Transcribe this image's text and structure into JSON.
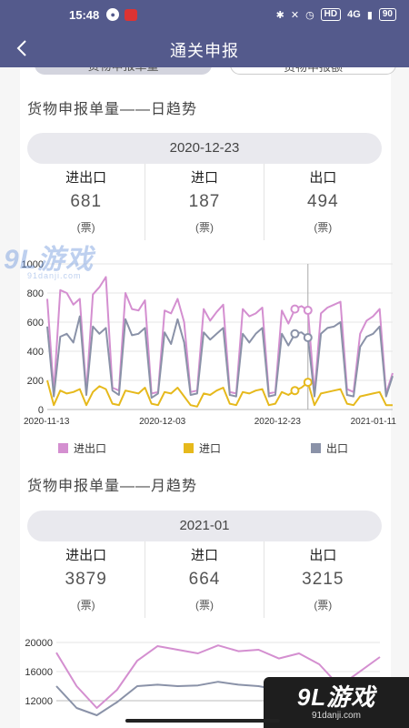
{
  "status_bar": {
    "time": "15:48",
    "battery": "90",
    "network": "4G"
  },
  "app_bar": {
    "title": "通关申报"
  },
  "tabs": [
    {
      "label": "货物申报单量",
      "active": true
    },
    {
      "label": "货物申报额",
      "active": false
    }
  ],
  "daily": {
    "section_title": "货物申报单量——日趋势",
    "date": "2020-12-23",
    "stats": [
      {
        "label": "进出口",
        "value": "681",
        "unit": "(票)"
      },
      {
        "label": "进口",
        "value": "187",
        "unit": "(票)"
      },
      {
        "label": "出口",
        "value": "494",
        "unit": "(票)"
      }
    ]
  },
  "monthly": {
    "section_title": "货物申报单量——月趋势",
    "date": "2021-01",
    "stats": [
      {
        "label": "进出口",
        "value": "3879",
        "unit": "(票)"
      },
      {
        "label": "进口",
        "value": "664",
        "unit": "(票)"
      },
      {
        "label": "出口",
        "value": "3215",
        "unit": "(票)"
      }
    ]
  },
  "legend": [
    {
      "label": "进出口",
      "color": "#d48fd0"
    },
    {
      "label": "进口",
      "color": "#e6b91c"
    },
    {
      "label": "出口",
      "color": "#8a92a8"
    }
  ],
  "watermark": {
    "logo": "9L游戏",
    "site": "91danji.com"
  },
  "chart_data": [
    {
      "type": "line",
      "ylim": [
        0,
        1000
      ],
      "yticks": [
        "0",
        "200",
        "400",
        "600",
        "800",
        "1000"
      ],
      "xticks": [
        "2020-11-13",
        "2020-12-03",
        "2020-12-23",
        "2021-01-11"
      ],
      "highlight_index": 40,
      "series": [
        {
          "name": "进出口",
          "color": "#d48fd0",
          "values": [
            760,
            120,
            820,
            800,
            720,
            760,
            120,
            790,
            840,
            910,
            150,
            130,
            800,
            690,
            680,
            750,
            110,
            120,
            680,
            660,
            760,
            600,
            120,
            130,
            690,
            610,
            670,
            720,
            120,
            110,
            690,
            640,
            660,
            700,
            110,
            120,
            680,
            590,
            690,
            710,
            681,
            110,
            660,
            700,
            720,
            740,
            140,
            120,
            520,
            610,
            640,
            690,
            110,
            250
          ]
        },
        {
          "name": "进口",
          "color": "#e6b91c",
          "values": [
            200,
            30,
            130,
            110,
            120,
            140,
            30,
            120,
            160,
            140,
            40,
            30,
            130,
            120,
            110,
            150,
            40,
            30,
            120,
            110,
            150,
            90,
            30,
            20,
            110,
            100,
            130,
            150,
            40,
            30,
            120,
            110,
            130,
            140,
            30,
            40,
            120,
            100,
            130,
            150,
            187,
            30,
            110,
            120,
            130,
            140,
            40,
            30,
            90,
            100,
            110,
            120,
            30,
            30
          ]
        },
        {
          "name": "出口",
          "color": "#8a92a8",
          "values": [
            570,
            90,
            500,
            520,
            460,
            640,
            100,
            570,
            520,
            560,
            130,
            100,
            620,
            510,
            520,
            560,
            80,
            110,
            530,
            450,
            620,
            460,
            100,
            110,
            530,
            480,
            520,
            560,
            100,
            90,
            520,
            460,
            520,
            560,
            90,
            100,
            520,
            440,
            520,
            530,
            494,
            90,
            520,
            560,
            570,
            600,
            100,
            90,
            430,
            500,
            520,
            570,
            90,
            230
          ]
        }
      ]
    },
    {
      "type": "line",
      "ylim": [
        12000,
        20000
      ],
      "yticks": [
        "12000",
        "16000",
        "20000"
      ],
      "series": [
        {
          "name": "进出口",
          "color": "#d48fd0",
          "values": [
            18600,
            14000,
            11000,
            13500,
            17500,
            19500,
            19000,
            18500,
            19600,
            18800,
            19000,
            17800,
            18500,
            17000,
            14000,
            16000,
            18000
          ]
        },
        {
          "name": "出口",
          "color": "#8a92a8",
          "values": [
            14000,
            11000,
            10000,
            11800,
            14000,
            14200,
            14000,
            14100,
            14600,
            14200,
            14000,
            13500,
            14000,
            13000,
            12000,
            13000,
            14500
          ]
        }
      ]
    }
  ]
}
